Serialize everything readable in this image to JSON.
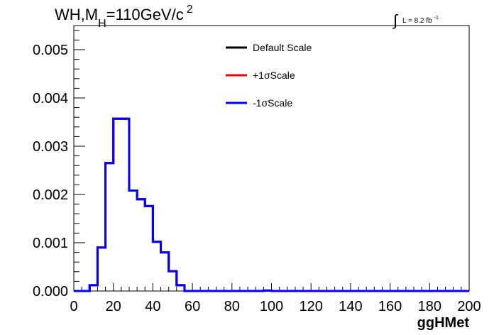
{
  "chart_data": {
    "type": "histogram",
    "title": {
      "main": "WH,M",
      "sub": "H",
      "value": "=110GeV/c",
      "sup": "2"
    },
    "lumi": {
      "integral_symbol": "∫",
      "text": "L = 8.2 fb",
      "sup": "-1"
    },
    "xlabel": "ggHMet",
    "ylabel": "",
    "xlim": [
      0,
      200
    ],
    "ylim": [
      0,
      0.0055
    ],
    "x_ticks": [
      0,
      20,
      40,
      60,
      80,
      100,
      120,
      140,
      160,
      180,
      200
    ],
    "x_tick_labels": [
      "0",
      "20",
      "40",
      "60",
      "80",
      "100",
      "120",
      "140",
      "160",
      "180",
      "200"
    ],
    "y_ticks": [
      0,
      0.001,
      0.002,
      0.003,
      0.004,
      0.005
    ],
    "y_tick_labels": [
      "0.000",
      "0.001",
      "0.002",
      "0.003",
      "0.004",
      "0.005"
    ],
    "bin_edges": [
      0,
      4,
      8,
      12,
      16,
      20,
      24,
      28,
      32,
      36,
      40,
      44,
      48,
      52,
      56,
      60,
      64,
      68,
      72,
      76,
      80,
      84,
      88,
      92,
      96,
      100,
      104,
      108,
      112,
      116,
      120,
      124,
      128,
      132,
      136,
      140,
      144,
      148,
      152,
      156,
      160,
      164,
      168,
      172,
      176,
      180,
      184,
      188,
      192,
      196,
      200
    ],
    "series": [
      {
        "name": "Default Scale",
        "color": "#000000",
        "values": [
          0,
          0,
          0.00012,
          0.0009,
          0.00265,
          0.00357,
          0.00357,
          0.00208,
          0.0019,
          0.00176,
          0.00102,
          0.0008,
          0.00041,
          0.00012,
          0,
          0,
          0,
          0,
          0,
          0,
          0,
          0,
          0,
          0,
          1e-05,
          0,
          0,
          0,
          0,
          0,
          0,
          0,
          0,
          0,
          0,
          0,
          0,
          0,
          0,
          0,
          0,
          0,
          0,
          0,
          0,
          0,
          0,
          0,
          0,
          0
        ]
      },
      {
        "name": "+1σScale",
        "color": "#ff0000",
        "values": [
          0,
          0,
          0.00012,
          0.0009,
          0.00265,
          0.00357,
          0.00357,
          0.00208,
          0.0019,
          0.00176,
          0.00102,
          0.0008,
          0.00041,
          0.00012,
          0,
          0,
          0,
          0,
          0,
          0,
          0,
          0,
          0,
          0,
          1e-05,
          0,
          0,
          0,
          0,
          0,
          0,
          0,
          0,
          0,
          0,
          0,
          0,
          0,
          0,
          0,
          0,
          0,
          0,
          0,
          0,
          0,
          0,
          0,
          0,
          0
        ]
      },
      {
        "name": "-1σScale",
        "color": "#0000ff",
        "values": [
          0,
          0,
          0.00012,
          0.0009,
          0.00265,
          0.00357,
          0.00357,
          0.00208,
          0.0019,
          0.00176,
          0.00102,
          0.0008,
          0.00041,
          0.00012,
          0,
          0,
          0,
          0,
          0,
          0,
          0,
          0,
          0,
          0,
          1e-05,
          0,
          0,
          0,
          0,
          0,
          0,
          0,
          0,
          0,
          0,
          0,
          0,
          0,
          0,
          0,
          0,
          0,
          0,
          0,
          0,
          0,
          0,
          0,
          0,
          0
        ]
      }
    ],
    "legend_placement": "top-center",
    "grid": false
  }
}
